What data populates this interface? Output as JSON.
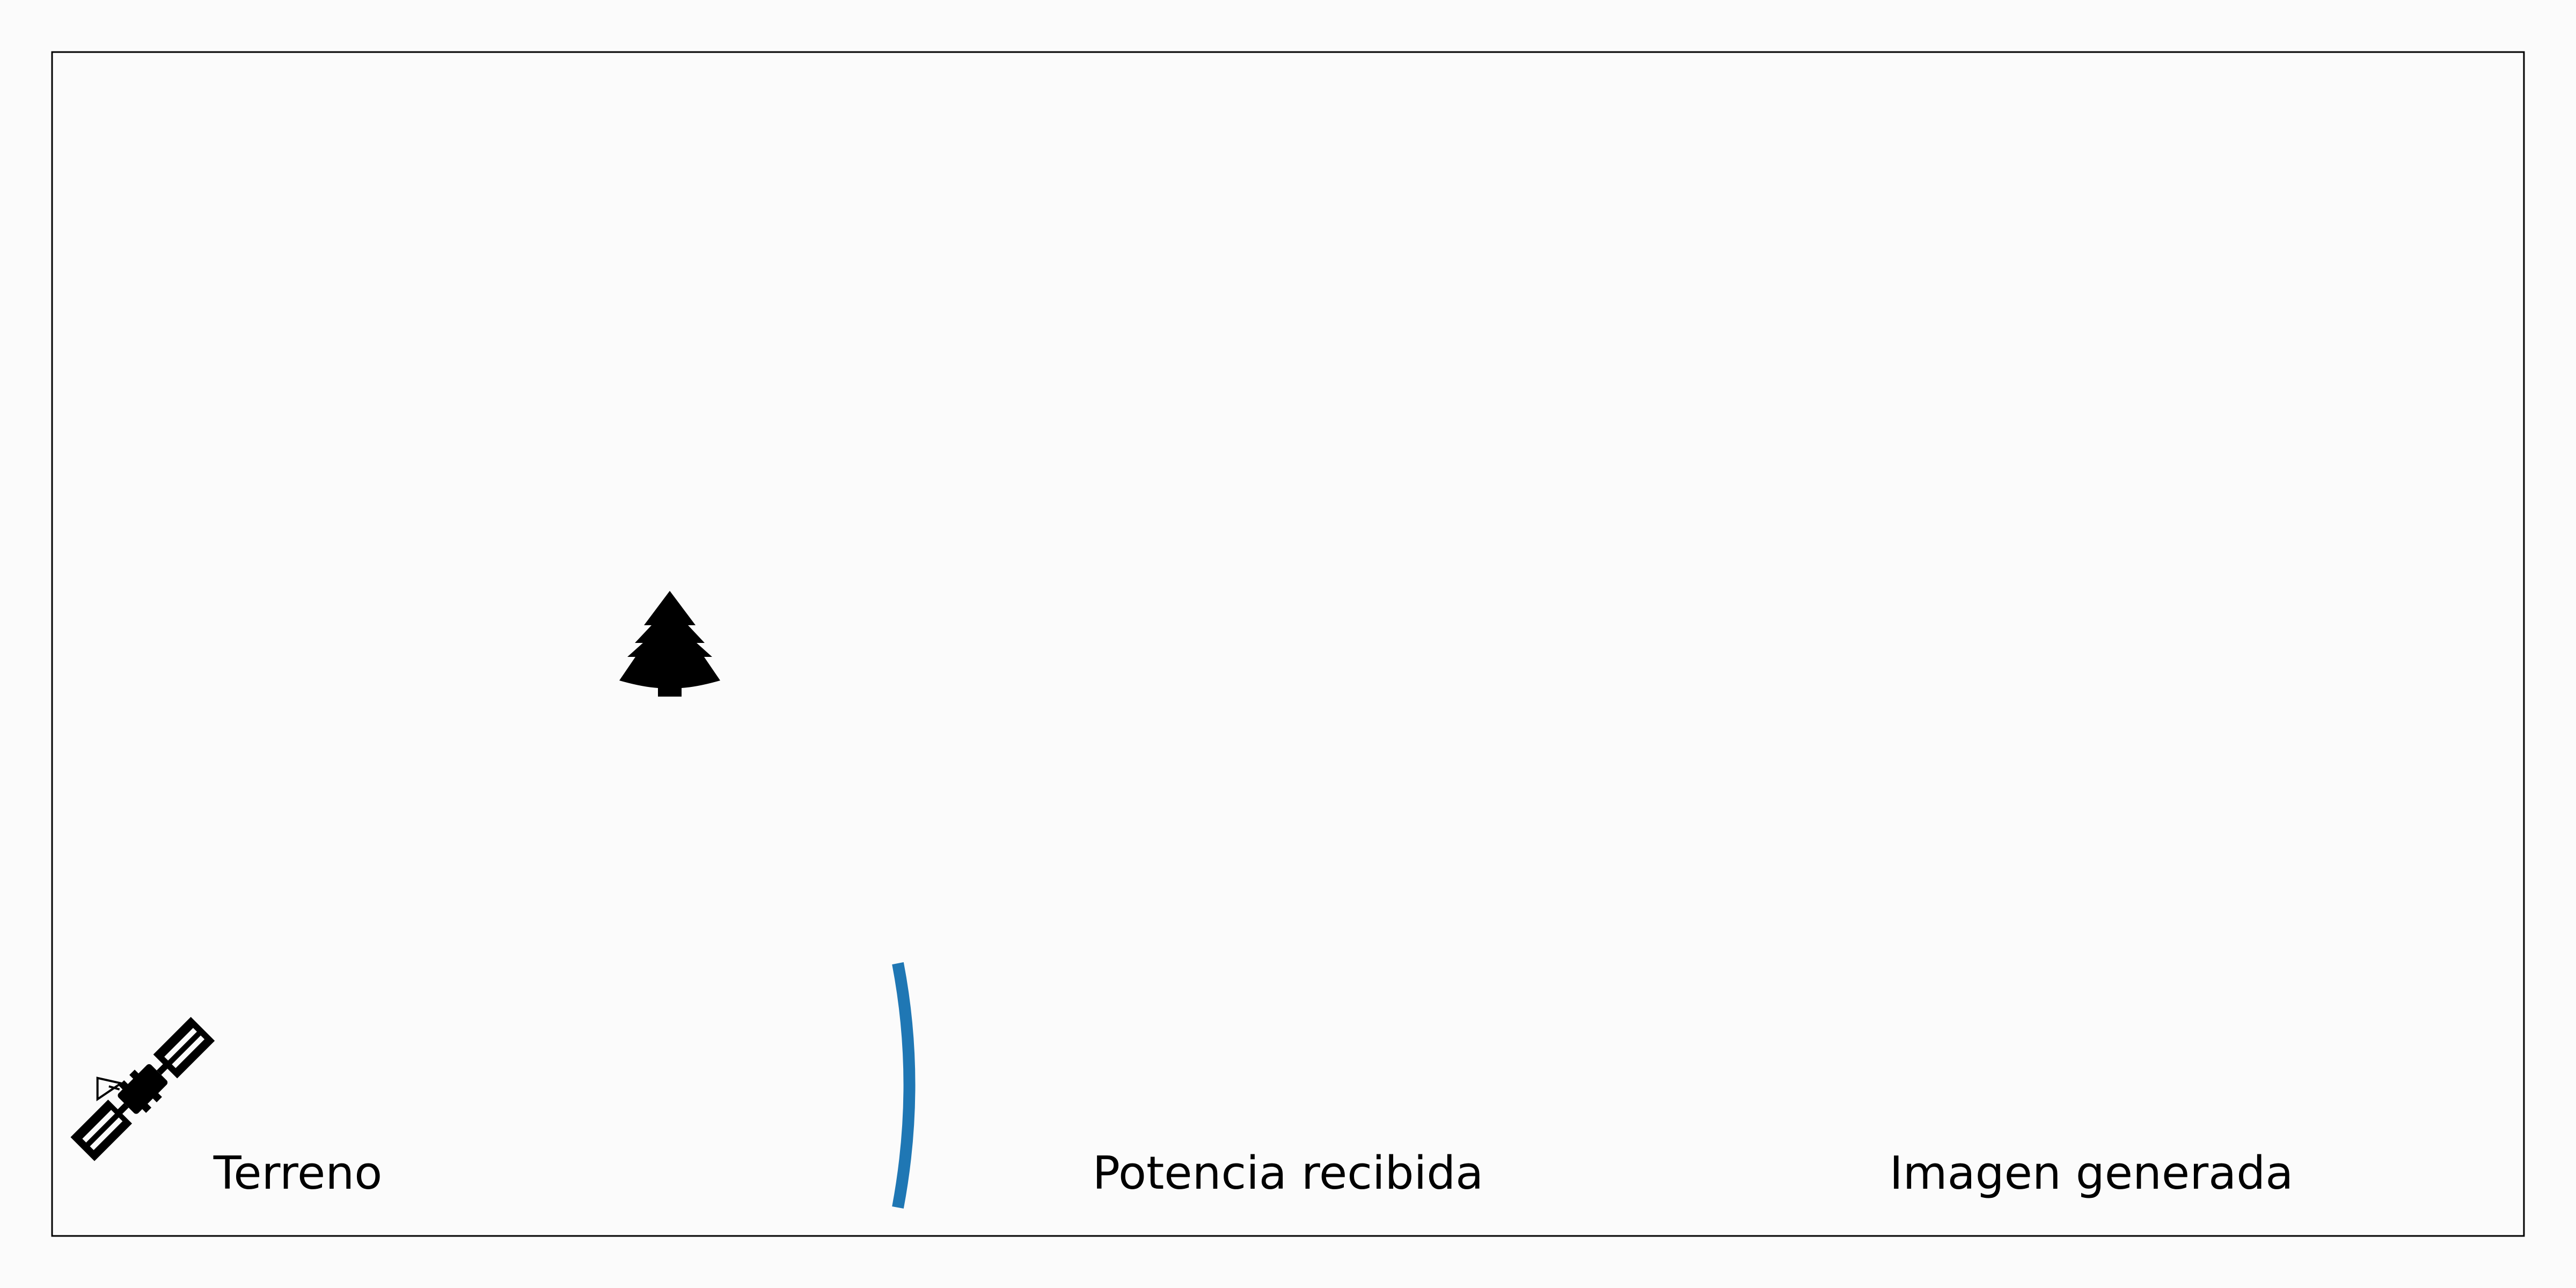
{
  "colors": {
    "background": "#fbfbfb",
    "frame": "#000000",
    "icon": "#000000",
    "wavefront": "#1f77b4"
  },
  "icons": [
    "satellite-icon",
    "tree-icon"
  ],
  "panels": {
    "terrain": {
      "label": "Terreno"
    },
    "received_power": {
      "label": "Potencia recibida"
    },
    "generated_image": {
      "label": "Imagen generada"
    }
  }
}
